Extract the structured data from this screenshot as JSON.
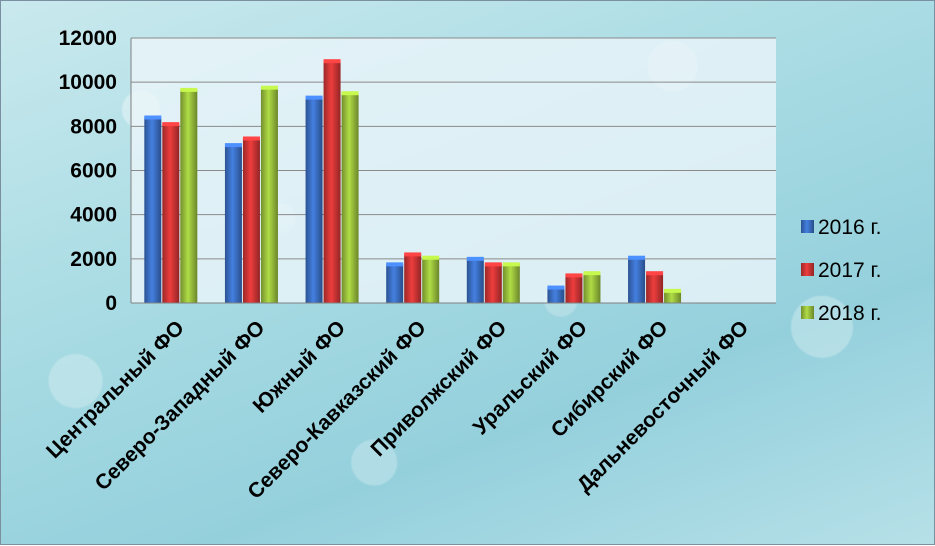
{
  "chart_data": {
    "type": "bar",
    "categories": [
      "Центральный ФО",
      "Северо-Западный ФО",
      "Южный ФО",
      "Северо-Кавказский ФО",
      "Приволжский ФО",
      "Уральский ФО",
      "Сибирский ФО",
      "Дальневосточный ФО"
    ],
    "series": [
      {
        "name": "2016 г.",
        "color": "#3b6fc4",
        "values": [
          8400,
          7150,
          9300,
          1750,
          2000,
          700,
          2050,
          0
        ]
      },
      {
        "name": "2017 г.",
        "color": "#cf3535",
        "values": [
          8100,
          7450,
          10950,
          2200,
          1750,
          1250,
          1350,
          0
        ]
      },
      {
        "name": "2018 г.",
        "color": "#99bf3c",
        "values": [
          9650,
          9750,
          9500,
          2050,
          1750,
          1350,
          550,
          0
        ]
      }
    ],
    "yticks": [
      "0",
      "2000",
      "4000",
      "6000",
      "8000",
      "10000",
      "12000"
    ],
    "ylim": [
      0,
      12000
    ],
    "grid": true,
    "legend_position": "right",
    "title": "",
    "xlabel": "",
    "ylabel": ""
  }
}
